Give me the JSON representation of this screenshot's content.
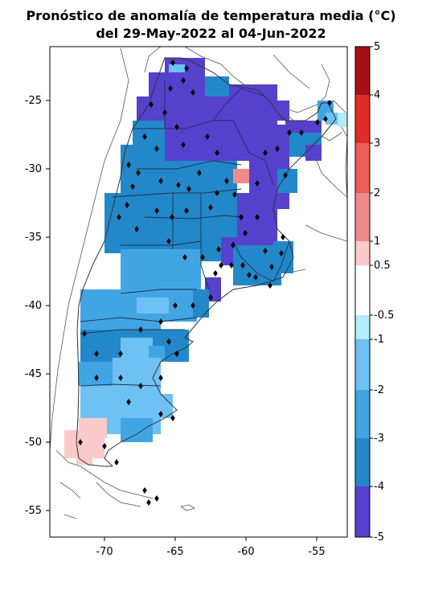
{
  "title_line1": "Pronóstico de anomalía de temperatura media (°C)",
  "title_line2": "del 29-May-2022 al 04-Jun-2022",
  "map": {
    "lon_ticks": [
      -70,
      -65,
      -60,
      -55
    ],
    "lat_ticks": [
      -25,
      -30,
      -35,
      -40,
      -45,
      -50,
      -55
    ],
    "lon_range": [
      -74,
      -52.5
    ],
    "lat_range": [
      -57.2,
      -21.7
    ],
    "frame_color": "#000000"
  },
  "colorbar": {
    "tick_labels": [
      "5",
      "4",
      "3",
      "2",
      "1",
      "0.5",
      "-0.5",
      "-1",
      "-2",
      "-3",
      "-4",
      "-5"
    ],
    "bins": [
      {
        "from": 4,
        "to": 5,
        "color": "#a50f15"
      },
      {
        "from": 3,
        "to": 4,
        "color": "#de2d26"
      },
      {
        "from": 2,
        "to": 3,
        "color": "#ef5b5b"
      },
      {
        "from": 1,
        "to": 2,
        "color": "#f08a8a"
      },
      {
        "from": 0.5,
        "to": 1,
        "color": "#fccaca"
      },
      {
        "from": -0.5,
        "to": 0.5,
        "color": "#ffffff"
      },
      {
        "from": -1,
        "to": -0.5,
        "color": "#b3ecfb"
      },
      {
        "from": -2,
        "to": -1,
        "color": "#6ec1f3"
      },
      {
        "from": -3,
        "to": -2,
        "color": "#42a5e3"
      },
      {
        "from": -4,
        "to": -3,
        "color": "#2388c9"
      },
      {
        "from": -5,
        "to": -4,
        "color": "#5541cc"
      }
    ]
  }
}
